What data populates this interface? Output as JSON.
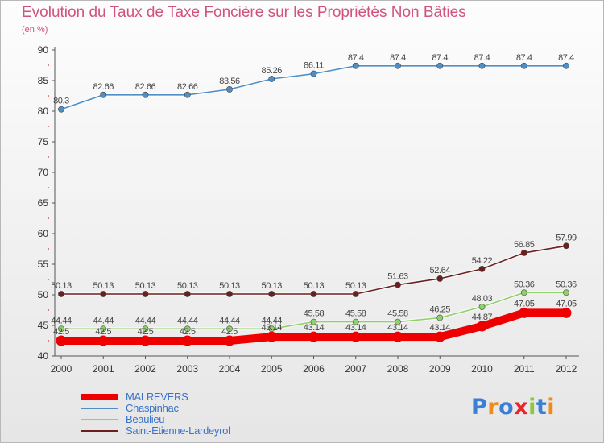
{
  "chart_data": {
    "type": "line",
    "title": "Evolution du Taux de Taxe Foncière sur les Propriétés Non Bâties",
    "unit_label": "(en %)",
    "categories": [
      "2000",
      "2001",
      "2002",
      "2003",
      "2004",
      "2005",
      "2006",
      "2007",
      "2008",
      "2009",
      "2010",
      "2011",
      "2012"
    ],
    "ylim": [
      40,
      90
    ],
    "yticks": [
      40,
      45,
      50,
      55,
      60,
      65,
      70,
      75,
      80,
      85,
      90
    ],
    "grid": false,
    "legend_position": "bottom-left",
    "series": [
      {
        "name": "MALREVERS",
        "color": "#ee0000",
        "values": [
          42.5,
          42.5,
          42.5,
          42.5,
          42.5,
          43.14,
          43.14,
          43.14,
          43.14,
          43.14,
          44.87,
          47.05,
          47.05
        ],
        "labels": [
          "42.5",
          "42.5",
          "42.5",
          "42.5",
          "42.5",
          "43.14",
          "43.14",
          "43.14",
          "43.14",
          "43.14",
          "44.87",
          "47.05",
          "47.05"
        ]
      },
      {
        "name": "Chaspinhac",
        "color": "#4f8fc7",
        "values": [
          80.3,
          82.66,
          82.66,
          82.66,
          83.56,
          85.26,
          86.11,
          87.4,
          87.4,
          87.4,
          87.4,
          87.4,
          87.4
        ],
        "labels": [
          "80.3",
          "82.66",
          "82.66",
          "82.66",
          "83.56",
          "85.26",
          "86.11",
          "87.4",
          "87.4",
          "87.4",
          "87.4",
          "87.4",
          "87.4"
        ]
      },
      {
        "name": "Beaulieu",
        "color": "#8fd16a",
        "values": [
          44.44,
          44.44,
          44.44,
          44.44,
          44.44,
          44.44,
          45.58,
          45.58,
          45.58,
          46.25,
          48.03,
          50.36,
          50.36
        ],
        "labels": [
          "44.44",
          "44.44",
          "44.44",
          "44.44",
          "44.44",
          "44.44",
          "45.58",
          "45.58",
          "45.58",
          "46.25",
          "48.03",
          "50.36",
          "50.36"
        ]
      },
      {
        "name": "Saint-Etienne-Lardeyrol",
        "color": "#6b1f1f",
        "values": [
          50.13,
          50.13,
          50.13,
          50.13,
          50.13,
          50.13,
          50.13,
          50.13,
          51.63,
          52.64,
          54.22,
          56.85,
          57.99
        ],
        "labels": [
          "50.13",
          "50.13",
          "50.13",
          "50.13",
          "50.13",
          "50.13",
          "50.13",
          "50.13",
          "51.63",
          "52.64",
          "54.22",
          "56.85",
          "57.99"
        ]
      }
    ]
  },
  "legend": {
    "items": [
      {
        "label": "MALREVERS",
        "color": "#ee0000",
        "thick": true
      },
      {
        "label": "Chaspinhac",
        "color": "#4f8fc7",
        "thick": false
      },
      {
        "label": "Beaulieu",
        "color": "#8fd16a",
        "thick": false
      },
      {
        "label": "Saint-Etienne-Lardeyrol",
        "color": "#6b1f1f",
        "thick": false
      }
    ]
  },
  "logo": {
    "text": "Proxiti",
    "letter_colors": [
      "#3a7fd5",
      "#f08a1c",
      "#3a7fd5",
      "#e8262a",
      "#8dc63f",
      "#3a7fd5",
      "#f08a1c"
    ]
  }
}
